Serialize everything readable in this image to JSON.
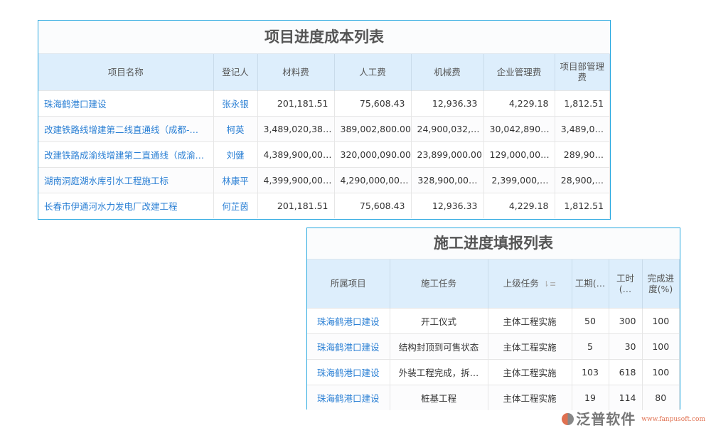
{
  "cost_table": {
    "title": "项目进度成本列表",
    "headers": [
      "项目名称",
      "登记人",
      "材料费",
      "人工费",
      "机械费",
      "企业管理费",
      "项目部管理费"
    ],
    "rows": [
      [
        "珠海鹤港口建设",
        "张永银",
        "201,181.51",
        "75,608.43",
        "12,936.33",
        "4,229.18",
        "1,812.51"
      ],
      [
        "改建铁路线增建第二线直通线（成都-…",
        "柯英",
        "3,489,020,38…",
        "389,002,800.00",
        "24,900,032,…",
        "30,042,890…",
        "3,489,0…"
      ],
      [
        "改建铁路成渝线增建第二直通线（成渝…",
        "刘健",
        "4,389,900,00…",
        "320,000,090.00",
        "23,899,000.00",
        "129,000,00…",
        "289,90…"
      ],
      [
        "湖南洞庭湖水库引水工程施工标",
        "林康平",
        "4,399,900,00…",
        "4,290,000,00…",
        "328,900,00…",
        "2,399,000,…",
        "28,900,…"
      ],
      [
        "长春市伊通河水力发电厂改建工程",
        "何芷茵",
        "201,181.51",
        "75,608.43",
        "12,936.33",
        "4,229.18",
        "1,812.51"
      ]
    ]
  },
  "progress_table": {
    "title": "施工进度填报列表",
    "headers": [
      "所属项目",
      "施工任务",
      "上级任务",
      "工期(…",
      "工时(…",
      "完成进度(%)"
    ],
    "sort_icon": "sort-desc-icon",
    "rows": [
      [
        "珠海鹤港口建设",
        "开工仪式",
        "主体工程实施",
        "50",
        "300",
        "100"
      ],
      [
        "珠海鹤港口建设",
        "结构封顶到可售状态",
        "主体工程实施",
        "5",
        "30",
        "100"
      ],
      [
        "珠海鹤港口建设",
        "外装工程完成，拆…",
        "主体工程实施",
        "103",
        "618",
        "100"
      ],
      [
        "珠海鹤港口建设",
        "桩基工程",
        "主体工程实施",
        "19",
        "114",
        "80"
      ]
    ]
  },
  "watermark": {
    "brand": "泛普软件",
    "url": "www.fanpusoft.com"
  },
  "colors": {
    "accent": "#29a8e0",
    "header_bg": "#ddeefc",
    "link": "#2a7fd4"
  }
}
